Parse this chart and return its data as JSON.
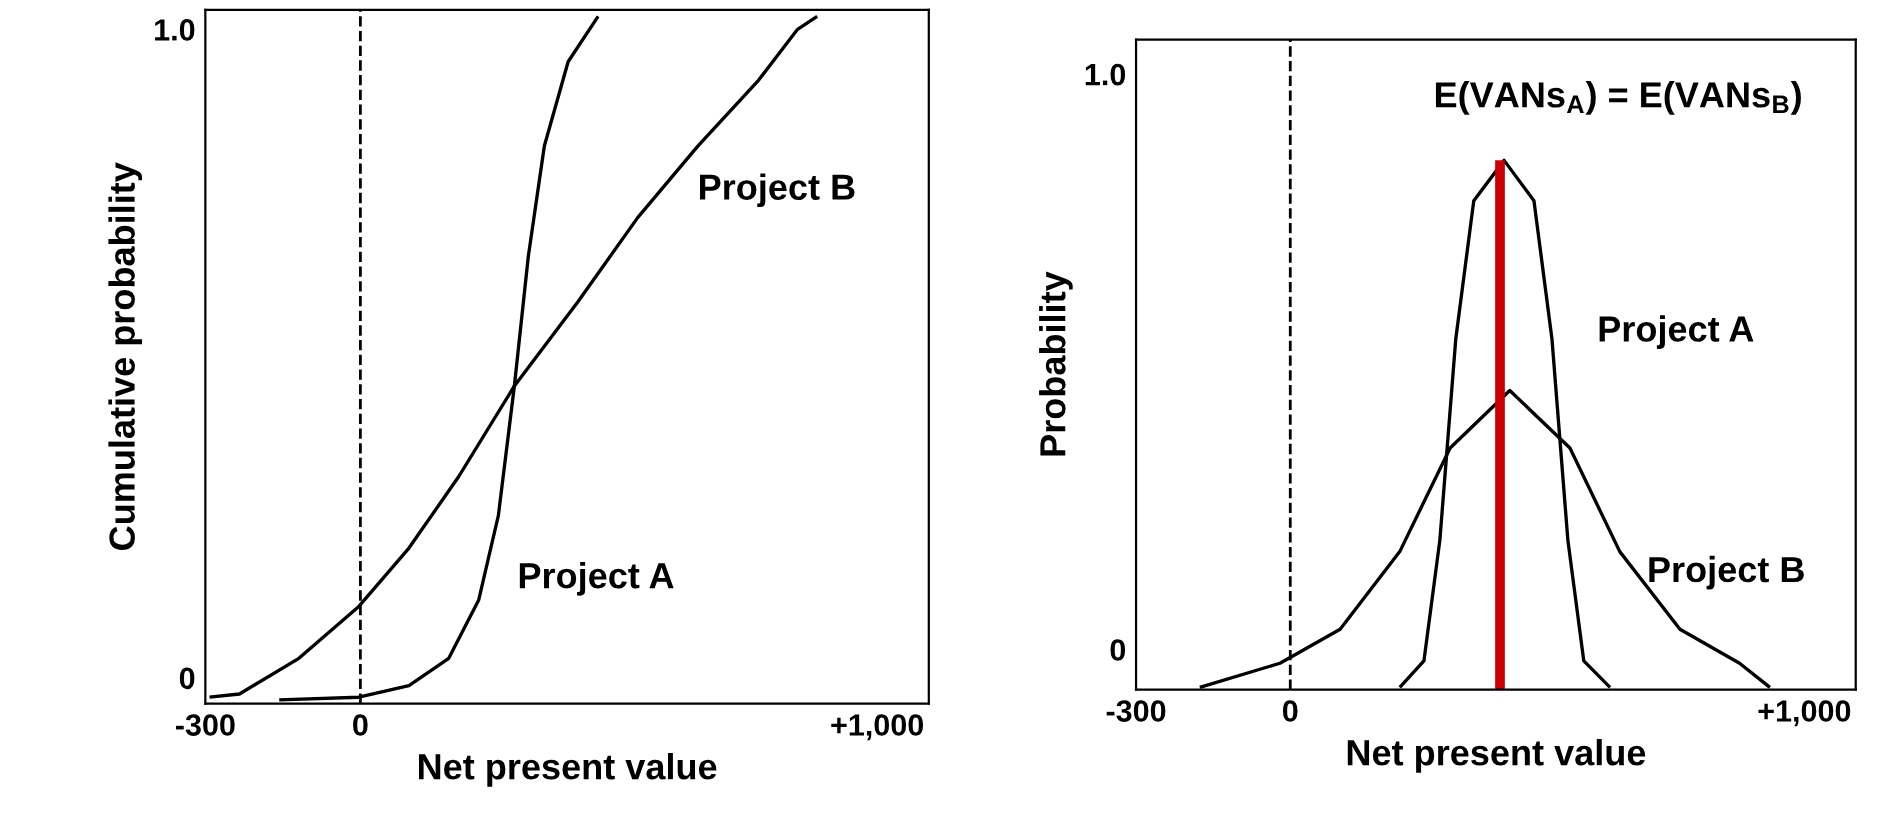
{
  "chart_data": [
    {
      "type": "line",
      "xlabel": "Net present value",
      "ylabel": "Cumulative probability",
      "xlim": [
        -300,
        1100
      ],
      "ylim": [
        -0.04,
        1.03
      ],
      "xticks": [
        -300,
        0,
        {
          "value": 1000,
          "label": "+1,000"
        }
      ],
      "yticks": [
        0,
        {
          "value": 1,
          "label": "1.0"
        }
      ],
      "grid": false,
      "series": [
        {
          "name": "Project A",
          "color": "#000000",
          "x": [
            -157,
            -3,
            94,
            171,
            229,
            267,
            298,
            325,
            356,
            402,
            460
          ],
          "values": [
            -0.034,
            -0.03,
            -0.012,
            0.03,
            0.12,
            0.25,
            0.45,
            0.65,
            0.82,
            0.95,
            1.02
          ]
        },
        {
          "name": "Project B",
          "color": "#000000",
          "x": [
            -292,
            -234,
            -119,
            -3,
            94,
            190,
            298,
            421,
            537,
            653,
            769,
            846,
            884
          ],
          "values": [
            -0.03,
            -0.025,
            0.03,
            0.11,
            0.2,
            0.31,
            0.45,
            0.58,
            0.71,
            0.82,
            0.92,
            1.0,
            1.02
          ]
        }
      ],
      "ref_lines": [
        {
          "axis": "x",
          "value": 0,
          "color": "#000000",
          "line_style": "dashed"
        }
      ]
    },
    {
      "type": "line",
      "xlabel": "Net present value",
      "ylabel": "Probability",
      "xlim": [
        -300,
        1100
      ],
      "ylim": [
        -0.07,
        1.06
      ],
      "xticks": [
        -300,
        0,
        {
          "value": 1000,
          "label": "+1,000"
        }
      ],
      "yticks": [
        0,
        {
          "value": 1,
          "label": "1.0"
        }
      ],
      "grid": false,
      "series": [
        {
          "name": "Project A",
          "color": "#000000",
          "x": [
            213,
            260,
            291,
            322,
            357,
            416,
            474,
            509,
            540,
            571,
            622
          ],
          "values": [
            -0.066,
            -0.02,
            0.19,
            0.54,
            0.78,
            0.85,
            0.78,
            0.54,
            0.19,
            -0.02,
            -0.066
          ]
        },
        {
          "name": "Project B",
          "color": "#000000",
          "x": [
            -176,
            -20,
            97,
            213,
            311,
            427,
            544,
            641,
            758,
            874,
            933
          ],
          "values": [
            -0.066,
            -0.024,
            0.035,
            0.17,
            0.35,
            0.45,
            0.35,
            0.17,
            0.035,
            -0.024,
            -0.066
          ]
        },
        {
          "color": "#cc0000",
          "x": [
            408,
            408
          ],
          "values": [
            -0.07,
            0.85
          ]
        }
      ],
      "ref_lines": [
        {
          "axis": "x",
          "value": 0,
          "color": "#000000",
          "line_style": "dashed"
        }
      ],
      "annotations": [
        "E(VANs$_{A}$) = E(VANs$_{B}$)"
      ]
    }
  ]
}
